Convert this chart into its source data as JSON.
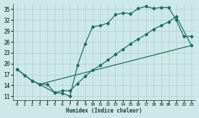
{
  "xlabel": "Humidex (Indice chaleur)",
  "xlim": [
    -0.5,
    23.5
  ],
  "ylim": [
    10,
    36.5
  ],
  "yticks": [
    11,
    14,
    17,
    20,
    23,
    26,
    29,
    32,
    35
  ],
  "xticks": [
    0,
    1,
    2,
    3,
    4,
    5,
    6,
    7,
    8,
    9,
    10,
    11,
    12,
    13,
    14,
    15,
    16,
    17,
    18,
    19,
    20,
    21,
    22,
    23
  ],
  "bg_color": "#cde8e8",
  "grid_color": "#b8d8d8",
  "line_color": "#1a6b5a",
  "curve1_x": [
    0,
    1,
    2,
    3,
    5,
    6,
    7,
    8,
    9,
    10,
    11,
    12,
    13,
    14,
    15,
    16,
    17,
    18,
    19,
    20,
    21,
    22,
    23
  ],
  "curve1_y": [
    18.5,
    16.8,
    15.3,
    14.3,
    12.0,
    11.8,
    11.0,
    19.5,
    25.5,
    30.2,
    30.5,
    31.2,
    33.5,
    34.0,
    33.8,
    35.2,
    35.8,
    35.2,
    35.5,
    35.5,
    32.0,
    27.5,
    27.5
  ],
  "curve2_x": [
    0,
    2,
    3,
    4,
    5,
    6,
    7,
    8,
    9,
    10,
    11,
    12,
    13,
    14,
    15,
    16,
    17,
    18,
    19,
    20,
    21,
    23
  ],
  "curve2_y": [
    18.5,
    15.3,
    14.3,
    14.3,
    12.0,
    12.5,
    12.5,
    14.5,
    16.5,
    18.2,
    19.5,
    21.0,
    22.5,
    24.0,
    25.5,
    26.8,
    28.0,
    29.5,
    30.5,
    31.5,
    33.0,
    25.0
  ],
  "curve3_x": [
    2,
    3,
    23
  ],
  "curve3_y": [
    15.3,
    14.3,
    25.0
  ],
  "marker": "D",
  "markersize": 2.0,
  "linewidth": 0.9
}
